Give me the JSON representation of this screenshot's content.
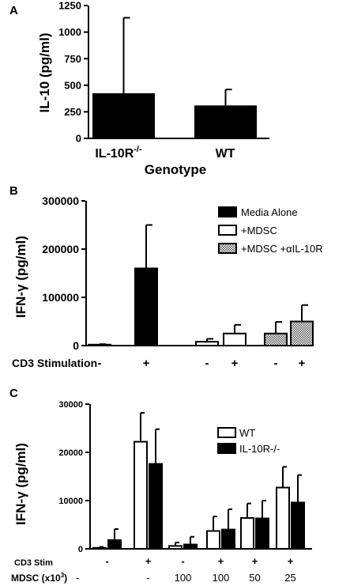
{
  "chart_data": [
    {
      "type": "bar",
      "panel_label": "A",
      "ylabel": "IL-10 (pg/ml)",
      "xlabel": "Genotype",
      "ylim": [
        0,
        1250
      ],
      "yticks": [
        "0",
        "250",
        "500",
        "750",
        "1000",
        "1250"
      ],
      "categories": [
        "IL-10R-/-",
        "WT"
      ],
      "category_labels": [
        {
          "main": "IL-10R",
          "sup": "-/-"
        },
        {
          "main": "WT",
          "sup": ""
        }
      ],
      "values": [
        425,
        310
      ],
      "errors": [
        710,
        150
      ],
      "colors": [
        "#000000",
        "#000000"
      ]
    },
    {
      "type": "bar",
      "panel_label": "B",
      "ylabel": "IFN-γ (pg/ml)",
      "xlabel": "CD3 Stimulation",
      "ylim": [
        0,
        300000
      ],
      "yticks": [
        "0",
        "100000",
        "200000",
        "300000"
      ],
      "categories": [
        "-",
        "+",
        "-",
        "+",
        "-",
        "+"
      ],
      "values": [
        2000,
        160000,
        8000,
        25000,
        25000,
        50000
      ],
      "errors": [
        1000,
        90000,
        6000,
        18000,
        24000,
        34000
      ],
      "bar_series": [
        0,
        0,
        1,
        1,
        2,
        2
      ],
      "series": [
        {
          "name": "Media Alone",
          "fill": "black"
        },
        {
          "name": "+MDSC",
          "fill": "white"
        },
        {
          "name": "+MDSC +αIL-10R",
          "fill": "hatch"
        }
      ],
      "legend": "top-right"
    },
    {
      "type": "bar",
      "panel_label": "C",
      "ylabel": "IFN-γ (pg/ml)",
      "ylim": [
        0,
        30000
      ],
      "yticks": [
        "0",
        "10000",
        "20000",
        "30000"
      ],
      "row_labels": {
        "cd3": "CD3 Stim",
        "mdsc_main": "MDSC (x10",
        "mdsc_sup": "3",
        "mdsc_tail": ")"
      },
      "categories_cd3": [
        "-",
        "+",
        "-",
        "+",
        "+",
        "+"
      ],
      "categories_mdsc": [
        "-",
        "-",
        "100",
        "100",
        "50",
        "25"
      ],
      "series": [
        {
          "name": "WT",
          "fill": "white",
          "values": [
            200,
            22200,
            600,
            3700,
            6400,
            12700
          ],
          "errors": [
            200,
            6000,
            700,
            3000,
            3000,
            4300
          ]
        },
        {
          "name": "IL-10R-/-",
          "fill": "black",
          "values": [
            1800,
            17600,
            900,
            4000,
            6300,
            9600
          ],
          "errors": [
            2300,
            7200,
            1600,
            4200,
            3700,
            5700
          ]
        }
      ],
      "legend": "top-right"
    }
  ]
}
